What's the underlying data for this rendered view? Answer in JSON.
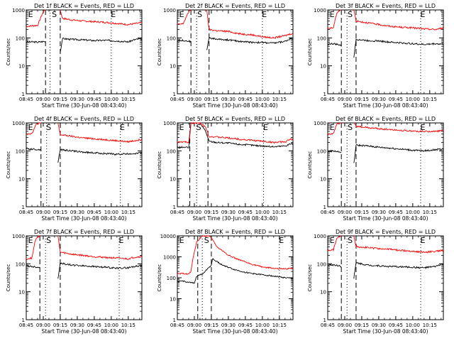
{
  "ylabel": "Counts/sec",
  "xlabel": "Start Time (30-Jun-08 08:43:40)",
  "x_tick_labels": [
    "08:45",
    "09:00",
    "09:15",
    "09:30",
    "09:45",
    "10:00",
    "10:15"
  ],
  "x_tick_minutes": [
    0,
    15,
    30,
    45,
    60,
    75,
    90
  ],
  "x_range_minutes": [
    0,
    102
  ],
  "y_scale": "log",
  "y_ticks": [
    {
      "label": "1",
      "value": 1
    },
    {
      "label": "10",
      "value": 10
    },
    {
      "label": "100",
      "value": 100
    },
    {
      "label": "1000",
      "value": 1000
    }
  ],
  "colors": {
    "events": "#000000",
    "lld": "#ff0000",
    "axes": "#000000"
  },
  "chart_data": [
    {
      "type": "line",
      "title": "Det 1f BLACK = Events, RED = LLD",
      "ylim": [
        1,
        1000
      ],
      "markers": [
        {
          "label": "E",
          "x": 1
        },
        {
          "label": "S",
          "x": 22
        },
        {
          "label": "E",
          "x": 74
        }
      ],
      "dashed_lines": [
        17,
        30
      ],
      "dotted_lines": [
        21,
        75
      ],
      "gaps": [
        [
          17,
          30
        ]
      ],
      "series": [
        {
          "name": "BLACK = Events",
          "color": "#000000",
          "x": [
            0,
            5,
            10,
            16,
            30,
            32,
            40,
            50,
            60,
            70,
            80,
            90,
            95,
            100
          ],
          "y": [
            70,
            72,
            70,
            75,
            30,
            95,
            88,
            85,
            80,
            82,
            78,
            72,
            85,
            92
          ]
        },
        {
          "name": "RED = LLD",
          "color": "#ff0000",
          "x": [
            0,
            5,
            10,
            14,
            16,
            30,
            32,
            40,
            50,
            60,
            70,
            80,
            90,
            95,
            100
          ],
          "y": [
            260,
            270,
            280,
            700,
            1000,
            1000,
            500,
            440,
            400,
            380,
            360,
            330,
            300,
            320,
            340
          ]
        }
      ]
    },
    {
      "type": "line",
      "title": "Det 2f BLACK = Events, RED = LLD",
      "ylim": [
        1,
        1000
      ],
      "markers": [
        {
          "label": "E",
          "x": 1
        },
        {
          "label": "S",
          "x": 17
        },
        {
          "label": "E",
          "x": 74
        }
      ],
      "dashed_lines": [
        12,
        28
      ],
      "dotted_lines": [
        17,
        75
      ],
      "gaps": [
        [
          12,
          26
        ]
      ],
      "series": [
        {
          "name": "BLACK = Events",
          "color": "#000000",
          "x": [
            0,
            5,
            11,
            26,
            28,
            35,
            45,
            55,
            65,
            75,
            85,
            95,
            100
          ],
          "y": [
            80,
            82,
            75,
            35,
            100,
            90,
            85,
            75,
            70,
            68,
            65,
            75,
            95
          ]
        },
        {
          "name": "RED = LLD",
          "color": "#ff0000",
          "x": [
            0,
            5,
            9,
            11,
            26,
            28,
            35,
            45,
            55,
            65,
            75,
            85,
            95,
            100
          ],
          "y": [
            300,
            320,
            700,
            1000,
            1000,
            200,
            180,
            170,
            140,
            130,
            110,
            100,
            120,
            140
          ]
        }
      ]
    },
    {
      "type": "line",
      "title": "Det 3f BLACK = Events, RED = LLD",
      "ylim": [
        1,
        1000
      ],
      "markers": [
        {
          "label": "E",
          "x": 1
        },
        {
          "label": "S",
          "x": 17
        },
        {
          "label": "E",
          "x": 81
        }
      ],
      "dashed_lines": [
        12,
        25
      ],
      "dotted_lines": [
        17,
        82
      ],
      "gaps": [
        [
          12,
          23
        ]
      ],
      "series": [
        {
          "name": "BLACK = Events",
          "color": "#000000",
          "x": [
            0,
            5,
            11,
            23,
            25,
            35,
            45,
            55,
            65,
            75,
            85,
            95,
            100
          ],
          "y": [
            60,
            62,
            55,
            20,
            90,
            80,
            78,
            70,
            66,
            62,
            58,
            62,
            60
          ]
        },
        {
          "name": "RED = LLD",
          "color": "#ff0000",
          "x": [
            0,
            5,
            8,
            11,
            23,
            25,
            35,
            45,
            55,
            65,
            75,
            85,
            95,
            100
          ],
          "y": [
            220,
            230,
            800,
            1000,
            1000,
            400,
            350,
            300,
            260,
            240,
            230,
            210,
            200,
            220
          ]
        }
      ]
    },
    {
      "type": "line",
      "title": "Det 4f BLACK = Events, RED = LLD",
      "ylim": [
        1,
        1000
      ],
      "markers": [
        {
          "label": "E",
          "x": 1
        },
        {
          "label": "S",
          "x": 17
        },
        {
          "label": "E",
          "x": 82
        }
      ],
      "dashed_lines": [
        13,
        30
      ],
      "dotted_lines": [
        18,
        83
      ],
      "gaps": [
        [
          13,
          28
        ]
      ],
      "series": [
        {
          "name": "BLACK = Events",
          "color": "#000000",
          "x": [
            0,
            5,
            12,
            28,
            30,
            40,
            50,
            60,
            70,
            80,
            90,
            95,
            100
          ],
          "y": [
            120,
            115,
            110,
            40,
            110,
            100,
            90,
            85,
            80,
            75,
            78,
            80,
            85
          ]
        },
        {
          "name": "RED = LLD",
          "color": "#ff0000",
          "x": [
            0,
            5,
            9,
            12,
            28,
            30,
            40,
            50,
            60,
            70,
            80,
            90,
            95,
            100
          ],
          "y": [
            400,
            420,
            900,
            1000,
            1000,
            380,
            330,
            290,
            270,
            250,
            230,
            210,
            230,
            250
          ]
        }
      ]
    },
    {
      "type": "line",
      "title": "Det 5f BLACK = Events, RED = LLD",
      "ylim": [
        1,
        1000
      ],
      "markers": [
        {
          "label": "E",
          "x": 1
        },
        {
          "label": "S",
          "x": 16
        },
        {
          "label": "E",
          "x": 75
        }
      ],
      "dashed_lines": [
        11,
        27
      ],
      "dotted_lines": [
        17,
        76
      ],
      "gaps": [],
      "series": [
        {
          "name": "BLACK = Events",
          "color": "#000000",
          "x": [
            0,
            5,
            10,
            12,
            20,
            25,
            28,
            35,
            45,
            55,
            65,
            75,
            85,
            95,
            100
          ],
          "y": [
            130,
            135,
            130,
            1000,
            1000,
            500,
            220,
            200,
            190,
            170,
            160,
            150,
            140,
            150,
            180
          ]
        },
        {
          "name": "RED = LLD",
          "color": "#ff0000",
          "x": [
            0,
            5,
            10,
            12,
            20,
            25,
            28,
            35,
            45,
            55,
            65,
            75,
            85,
            95,
            100
          ],
          "y": [
            200,
            210,
            200,
            1000,
            1000,
            700,
            330,
            310,
            290,
            260,
            240,
            220,
            200,
            210,
            260
          ]
        }
      ]
    },
    {
      "type": "line",
      "title": "Det 6f BLACK = Events, RED = LLD",
      "ylim": [
        1,
        1000
      ],
      "markers": [
        {
          "label": "E",
          "x": 1
        },
        {
          "label": "S",
          "x": 17
        },
        {
          "label": "E",
          "x": 81
        }
      ],
      "dashed_lines": [
        12,
        25
      ],
      "dotted_lines": [
        17,
        82
      ],
      "gaps": [
        [
          12,
          23
        ]
      ],
      "series": [
        {
          "name": "BLACK = Events",
          "color": "#000000",
          "x": [
            0,
            5,
            11,
            23,
            25,
            35,
            45,
            55,
            65,
            75,
            85,
            95,
            100
          ],
          "y": [
            95,
            100,
            90,
            35,
            160,
            150,
            135,
            125,
            115,
            105,
            100,
            110,
            115
          ]
        },
        {
          "name": "RED = LLD",
          "color": "#ff0000",
          "x": [
            0,
            5,
            8,
            11,
            23,
            25,
            35,
            45,
            55,
            65,
            75,
            85,
            95,
            100
          ],
          "y": [
            400,
            420,
            900,
            1000,
            1000,
            750,
            680,
            620,
            580,
            540,
            510,
            490,
            500,
            520
          ]
        }
      ]
    },
    {
      "type": "line",
      "title": "Det 7f BLACK = Events, RED = LLD",
      "ylim": [
        1,
        1000
      ],
      "markers": [
        {
          "label": "E",
          "x": 1
        },
        {
          "label": "S",
          "x": 17
        },
        {
          "label": "E",
          "x": 81
        }
      ],
      "dashed_lines": [
        12,
        30
      ],
      "dotted_lines": [
        17,
        82
      ],
      "gaps": [
        [
          12,
          28
        ]
      ],
      "series": [
        {
          "name": "BLACK = Events",
          "color": "#000000",
          "x": [
            0,
            5,
            11,
            28,
            30,
            40,
            50,
            60,
            70,
            80,
            90,
            95,
            100
          ],
          "y": [
            85,
            80,
            75,
            30,
            105,
            90,
            85,
            80,
            75,
            70,
            72,
            80,
            85
          ]
        },
        {
          "name": "RED = LLD",
          "color": "#ff0000",
          "x": [
            0,
            5,
            8,
            11,
            28,
            30,
            40,
            50,
            60,
            70,
            80,
            90,
            95,
            100
          ],
          "y": [
            150,
            160,
            700,
            1000,
            1000,
            260,
            220,
            200,
            180,
            170,
            160,
            150,
            170,
            180
          ]
        }
      ]
    },
    {
      "type": "line",
      "title": "Det 8f BLACK = Events, RED = LLD",
      "ylim": [
        1,
        10000
      ],
      "markers": [
        {
          "label": "E",
          "x": 1
        },
        {
          "label": "S",
          "x": 23
        },
        {
          "label": "E",
          "x": 89
        }
      ],
      "dashed_lines": [
        18,
        30
      ],
      "dotted_lines": [
        22,
        90
      ],
      "gaps": [],
      "series": [
        {
          "name": "BLACK = Events",
          "color": "#000000",
          "x": [
            0,
            5,
            10,
            15,
            17,
            22,
            26,
            30,
            31,
            40,
            50,
            60,
            70,
            80,
            90,
            95,
            100
          ],
          "y": [
            65,
            70,
            60,
            55,
            120,
            150,
            250,
            400,
            800,
            400,
            250,
            180,
            150,
            130,
            110,
            100,
            95
          ]
        },
        {
          "name": "RED = LLD",
          "color": "#ff0000",
          "x": [
            0,
            5,
            10,
            12,
            14,
            17,
            22,
            27,
            30,
            35,
            45,
            55,
            65,
            75,
            85,
            95,
            100
          ],
          "y": [
            150,
            160,
            150,
            200,
            1000,
            5000,
            10000,
            10000,
            8000,
            3000,
            1200,
            700,
            450,
            330,
            280,
            260,
            280
          ]
        }
      ]
    },
    {
      "type": "line",
      "title": "Det 9f BLACK = Events, RED = LLD",
      "ylim": [
        1,
        1000
      ],
      "markers": [
        {
          "label": "E",
          "x": 1
        },
        {
          "label": "S",
          "x": 17
        },
        {
          "label": "E",
          "x": 81
        }
      ],
      "dashed_lines": [
        12,
        25
      ],
      "dotted_lines": [
        17,
        82
      ],
      "gaps": [
        [
          12,
          23
        ]
      ],
      "series": [
        {
          "name": "BLACK = Events",
          "color": "#000000",
          "x": [
            0,
            5,
            11,
            23,
            25,
            35,
            45,
            55,
            65,
            75,
            85,
            95,
            100
          ],
          "y": [
            90,
            92,
            85,
            30,
            110,
            90,
            85,
            80,
            78,
            75,
            72,
            80,
            95
          ]
        },
        {
          "name": "RED = LLD",
          "color": "#ff0000",
          "x": [
            0,
            5,
            8,
            11,
            23,
            25,
            35,
            45,
            55,
            65,
            75,
            85,
            95,
            100
          ],
          "y": [
            300,
            320,
            800,
            1000,
            1000,
            420,
            380,
            350,
            330,
            300,
            280,
            260,
            280,
            300
          ]
        }
      ]
    }
  ]
}
